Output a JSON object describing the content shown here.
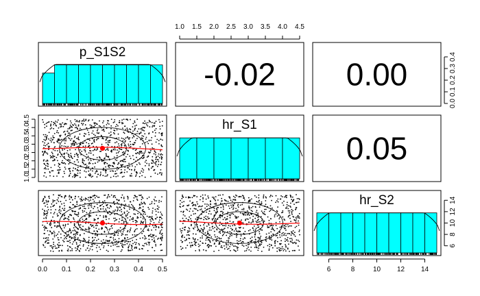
{
  "chart_data": {
    "type": "scatter-matrix",
    "variables": [
      "p_S1S2",
      "hr_S1",
      "hr_S2"
    ],
    "correlations": [
      {
        "row": 0,
        "col": 1,
        "label": "-0.02"
      },
      {
        "row": 0,
        "col": 2,
        "label": "0.00"
      },
      {
        "row": 1,
        "col": 2,
        "label": "0.05"
      }
    ],
    "axes": {
      "p_S1S2": {
        "range": [
          0,
          0.5
        ],
        "ticks": [
          "0.0",
          "0.1",
          "0.2",
          "0.3",
          "0.4",
          "0.5"
        ]
      },
      "hr_S1": {
        "range": [
          1.0,
          4.5
        ],
        "ticks": [
          "1.0",
          "1.5",
          "2.0",
          "2.5",
          "3.0",
          "3.5",
          "4.0",
          "4.5"
        ]
      },
      "hr_S2": {
        "range": [
          5,
          15
        ],
        "ticks_bottom": [
          "6",
          "8",
          "10",
          "12",
          "14"
        ],
        "ticks_right": [
          "6",
          "8",
          "10",
          "12",
          "14"
        ]
      }
    },
    "density_axis": {
      "ticks": [
        "0.0",
        "0.1",
        "0.2",
        "0.3",
        "0.4"
      ],
      "range": [
        0,
        0.5
      ]
    },
    "histograms": {
      "p_S1S2": {
        "breaks": [
          0,
          0.05,
          0.1,
          0.15,
          0.2,
          0.25,
          0.3,
          0.35,
          0.4,
          0.45,
          0.5
        ],
        "relative_heights": [
          0.78,
          0.99,
          0.99,
          0.99,
          0.99,
          0.99,
          0.99,
          0.99,
          0.99,
          0.99
        ]
      },
      "hr_S1": {
        "breaks": [
          1.0,
          1.5,
          2.0,
          2.5,
          3.0,
          3.5,
          4.0,
          4.5
        ],
        "relative_heights": [
          1,
          1,
          1,
          1,
          1,
          1,
          1
        ]
      },
      "hr_S2": {
        "breaks": [
          5,
          6,
          7,
          8,
          9,
          10,
          11,
          12,
          13,
          14,
          15
        ],
        "relative_heights": [
          1,
          1,
          1,
          1,
          1,
          1,
          1,
          1,
          1,
          1
        ]
      }
    },
    "scatter_points": 1000,
    "centers": {
      "p_S1S2": 0.25,
      "hr_S1": 2.75,
      "hr_S2": 10
    },
    "colors": {
      "histogram_fill": "#00ffff",
      "center_point": "#ff0000",
      "loess": "#ff0000",
      "points": "#000000"
    }
  }
}
